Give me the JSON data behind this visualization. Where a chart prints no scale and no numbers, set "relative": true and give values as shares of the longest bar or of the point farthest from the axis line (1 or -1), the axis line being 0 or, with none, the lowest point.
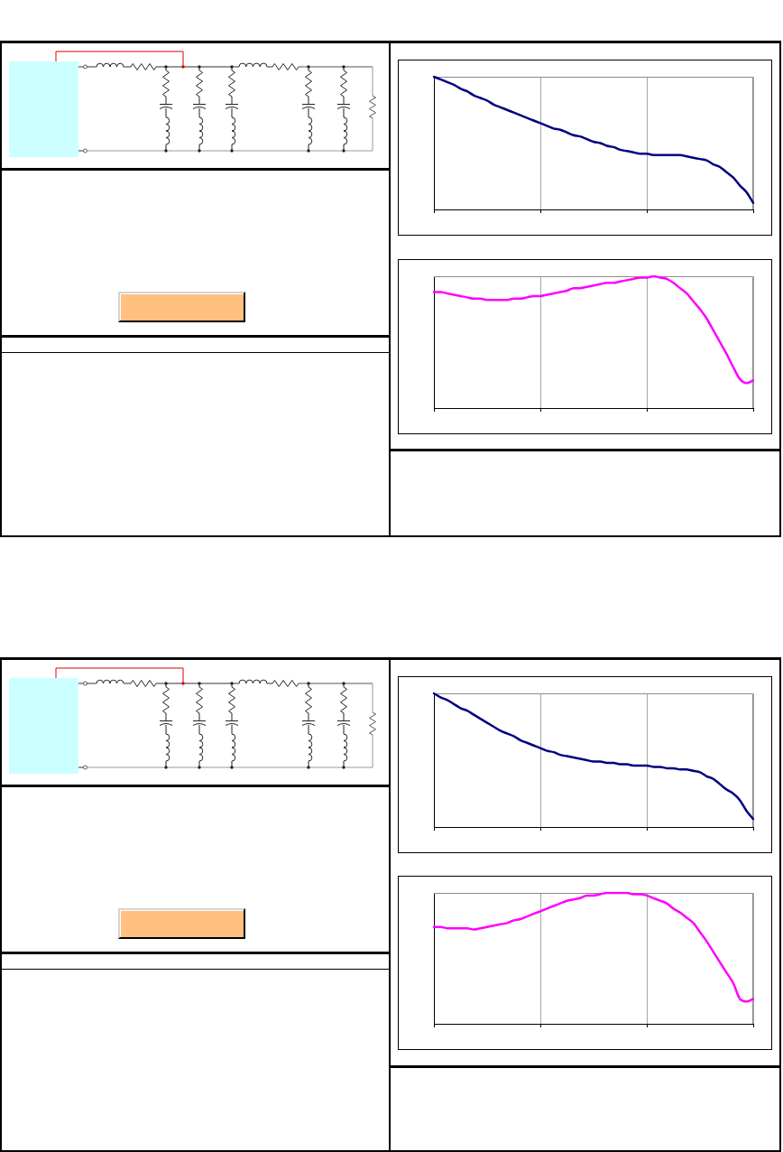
{
  "chart_data": [
    {
      "type": "line",
      "relative": true,
      "grid": "x",
      "categories": [
        null,
        null,
        null,
        null,
        null,
        null,
        null,
        null,
        null,
        null,
        null,
        null,
        null,
        null,
        null,
        null,
        null,
        null,
        null,
        null,
        null,
        null,
        null,
        null,
        null,
        null,
        null,
        null,
        null,
        null,
        null,
        null,
        null,
        null,
        null,
        null,
        null,
        null,
        null,
        null,
        null,
        null,
        null,
        null,
        null,
        null,
        null,
        null,
        null
      ],
      "series": [
        {
          "color": "#000080",
          "values": [
            1.0,
            0.98,
            0.96,
            0.94,
            0.91,
            0.89,
            0.86,
            0.84,
            0.82,
            0.79,
            0.77,
            0.75,
            0.73,
            0.71,
            0.69,
            0.67,
            0.65,
            0.63,
            0.61,
            0.6,
            0.58,
            0.56,
            0.55,
            0.53,
            0.51,
            0.5,
            0.48,
            0.47,
            0.45,
            0.44,
            0.43,
            0.42,
            0.42,
            0.41,
            0.41,
            0.41,
            0.41,
            0.41,
            0.4,
            0.39,
            0.38,
            0.37,
            0.34,
            0.32,
            0.28,
            0.24,
            0.18,
            0.13,
            0.05
          ]
        }
      ]
    },
    {
      "type": "line",
      "relative": true,
      "grid": "x",
      "categories": [
        null,
        null,
        null,
        null,
        null,
        null,
        null,
        null,
        null,
        null,
        null,
        null,
        null,
        null,
        null,
        null,
        null,
        null,
        null,
        null,
        null,
        null,
        null,
        null,
        null,
        null,
        null,
        null,
        null,
        null,
        null,
        null,
        null,
        null,
        null,
        null,
        null,
        null,
        null,
        null,
        null,
        null,
        null,
        null,
        null,
        null,
        null,
        null,
        null
      ],
      "series": [
        {
          "color": "#ff00ff",
          "values": [
            0.88,
            0.88,
            0.87,
            0.86,
            0.85,
            0.84,
            0.83,
            0.83,
            0.82,
            0.82,
            0.82,
            0.82,
            0.83,
            0.83,
            0.84,
            0.85,
            0.85,
            0.86,
            0.87,
            0.88,
            0.89,
            0.91,
            0.91,
            0.92,
            0.93,
            0.94,
            0.95,
            0.95,
            0.96,
            0.97,
            0.98,
            0.99,
            0.99,
            1.0,
            0.99,
            0.98,
            0.95,
            0.91,
            0.87,
            0.81,
            0.75,
            0.68,
            0.59,
            0.5,
            0.41,
            0.31,
            0.22,
            0.19,
            0.21
          ]
        }
      ]
    },
    {
      "type": "line",
      "relative": true,
      "grid": "x",
      "categories": [
        null,
        null,
        null,
        null,
        null,
        null,
        null,
        null,
        null,
        null,
        null,
        null,
        null,
        null,
        null,
        null,
        null,
        null,
        null,
        null,
        null,
        null,
        null,
        null,
        null,
        null,
        null,
        null,
        null,
        null,
        null,
        null,
        null,
        null,
        null,
        null,
        null,
        null,
        null,
        null,
        null,
        null,
        null,
        null,
        null,
        null,
        null,
        null,
        null
      ],
      "series": [
        {
          "color": "#000080",
          "values": [
            1.0,
            0.97,
            0.95,
            0.92,
            0.89,
            0.87,
            0.84,
            0.81,
            0.78,
            0.75,
            0.72,
            0.7,
            0.68,
            0.65,
            0.63,
            0.61,
            0.59,
            0.57,
            0.56,
            0.54,
            0.53,
            0.52,
            0.51,
            0.5,
            0.49,
            0.49,
            0.48,
            0.48,
            0.47,
            0.47,
            0.46,
            0.46,
            0.46,
            0.45,
            0.45,
            0.44,
            0.44,
            0.43,
            0.43,
            0.42,
            0.41,
            0.38,
            0.36,
            0.32,
            0.28,
            0.25,
            0.2,
            0.12,
            0.06
          ]
        }
      ]
    },
    {
      "type": "line",
      "relative": true,
      "grid": "x",
      "categories": [
        null,
        null,
        null,
        null,
        null,
        null,
        null,
        null,
        null,
        null,
        null,
        null,
        null,
        null,
        null,
        null,
        null,
        null,
        null,
        null,
        null,
        null,
        null,
        null,
        null,
        null,
        null,
        null,
        null,
        null,
        null,
        null,
        null,
        null,
        null,
        null,
        null,
        null,
        null,
        null,
        null,
        null,
        null,
        null,
        null,
        null,
        null,
        null,
        null
      ],
      "series": [
        {
          "color": "#ff00ff",
          "values": [
            0.74,
            0.74,
            0.73,
            0.73,
            0.73,
            0.73,
            0.72,
            0.73,
            0.74,
            0.75,
            0.76,
            0.77,
            0.79,
            0.8,
            0.82,
            0.84,
            0.86,
            0.88,
            0.9,
            0.92,
            0.94,
            0.95,
            0.96,
            0.98,
            0.98,
            0.99,
            1.0,
            1.0,
            1.0,
            1.0,
            0.99,
            0.99,
            0.98,
            0.96,
            0.94,
            0.92,
            0.88,
            0.85,
            0.81,
            0.77,
            0.7,
            0.63,
            0.55,
            0.47,
            0.39,
            0.31,
            0.19,
            0.17,
            0.19
          ]
        }
      ]
    }
  ]
}
